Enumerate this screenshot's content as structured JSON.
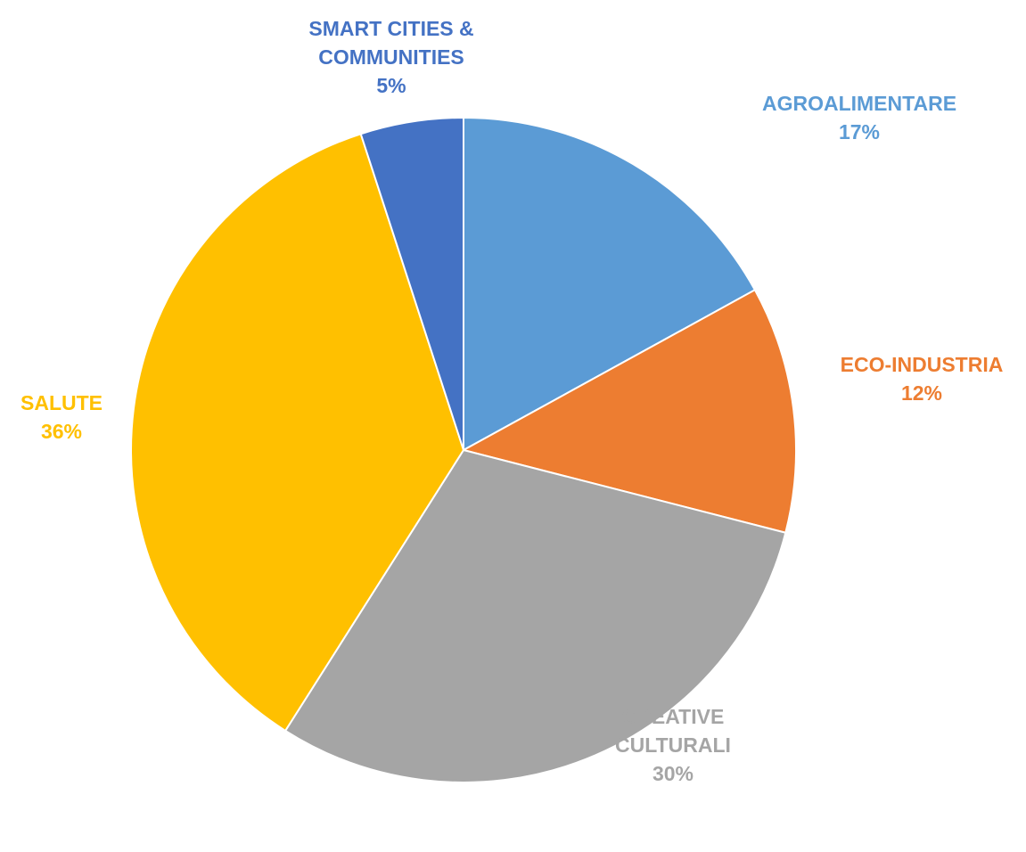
{
  "chart_data": {
    "type": "pie",
    "slices": [
      {
        "label_lines": [
          "AGROALIMENTARE"
        ],
        "value": 17,
        "value_label": "17%",
        "color": "#5B9BD5"
      },
      {
        "label_lines": [
          "ECO-INDUSTRIA"
        ],
        "value": 12,
        "value_label": "12%",
        "color": "#ED7D31"
      },
      {
        "label_lines": [
          "CREATIVE",
          "CULTURALI"
        ],
        "value": 30,
        "value_label": "30%",
        "color": "#A5A5A5"
      },
      {
        "label_lines": [
          "SALUTE"
        ],
        "value": 36,
        "value_label": "36%",
        "color": "#FFC000"
      },
      {
        "label_lines": [
          "SMART CITIES &",
          "COMMUNITIES"
        ],
        "value": 5,
        "value_label": "5%",
        "color": "#4472C4"
      }
    ],
    "start_angle_deg": 0,
    "direction": "clockwise",
    "legend": "none",
    "labels_outside": true
  }
}
